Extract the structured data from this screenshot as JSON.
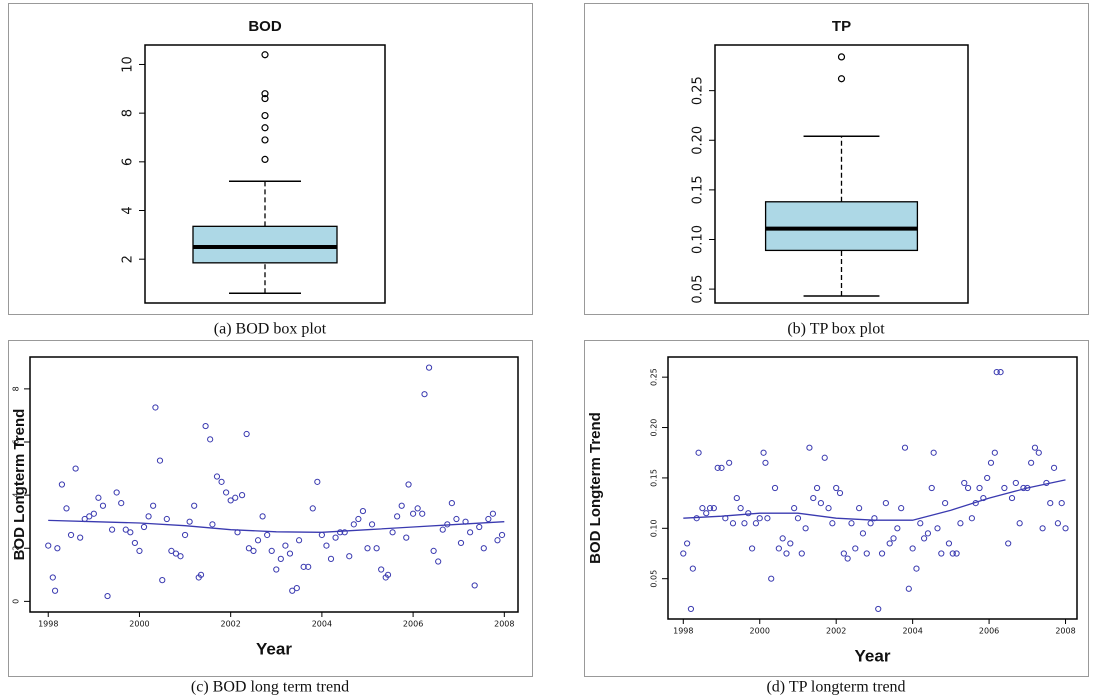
{
  "chart_data": [
    {
      "type": "box",
      "title": "BOD",
      "caption": "(a) BOD box plot",
      "color": "#add8e6",
      "stats": {
        "whisker_low": 0.6,
        "q1": 1.85,
        "median": 2.5,
        "q3": 3.35,
        "whisker_high": 5.2
      },
      "outliers": [
        6.1,
        6.9,
        7.4,
        7.9,
        8.6,
        8.8,
        10.4
      ],
      "ylim": [
        0.2,
        10.8
      ],
      "yticks": [
        2,
        4,
        6,
        8,
        10
      ]
    },
    {
      "type": "box",
      "title": "TP",
      "caption": "(b) TP box plot",
      "color": "#add8e6",
      "stats": {
        "whisker_low": 0.043,
        "q1": 0.089,
        "median": 0.111,
        "q3": 0.138,
        "whisker_high": 0.204
      },
      "outliers": [
        0.262,
        0.284
      ],
      "ylim": [
        0.036,
        0.296
      ],
      "yticks": [
        0.05,
        {
          "value": 0.1,
          "label": "0.10"
        },
        0.15,
        {
          "value": 0.2,
          "label": "0.20"
        },
        0.25
      ]
    },
    {
      "type": "scatter",
      "caption": "(c) BOD long term trend",
      "x_label": "Year",
      "y_label": "BOD Longterm Trend",
      "color": "#3a3ab0",
      "x": [
        1998.0,
        1998.1,
        1998.15,
        1998.2,
        1998.3,
        1998.4,
        1998.5,
        1998.6,
        1998.7,
        1998.8,
        1998.9,
        1999.0,
        1999.1,
        1999.2,
        1999.3,
        1999.4,
        1999.5,
        1999.6,
        1999.7,
        1999.8,
        1999.9,
        2000.0,
        2000.1,
        2000.2,
        2000.3,
        2000.35,
        2000.45,
        2000.5,
        2000.6,
        2000.7,
        2000.8,
        2000.9,
        2001.0,
        2001.1,
        2001.2,
        2001.3,
        2001.35,
        2001.45,
        2001.55,
        2001.6,
        2001.7,
        2001.8,
        2001.9,
        2002.0,
        2002.1,
        2002.15,
        2002.25,
        2002.35,
        2002.4,
        2002.5,
        2002.6,
        2002.7,
        2002.8,
        2002.9,
        2003.0,
        2003.1,
        2003.2,
        2003.3,
        2003.35,
        2003.45,
        2003.5,
        2003.6,
        2003.7,
        2003.8,
        2003.9,
        2004.0,
        2004.1,
        2004.2,
        2004.3,
        2004.4,
        2004.5,
        2004.6,
        2004.7,
        2004.8,
        2004.9,
        2005.0,
        2005.1,
        2005.2,
        2005.3,
        2005.4,
        2005.45,
        2005.55,
        2005.65,
        2005.75,
        2005.85,
        2005.9,
        2006.0,
        2006.1,
        2006.2,
        2006.25,
        2006.35,
        2006.45,
        2006.55,
        2006.65,
        2006.75,
        2006.85,
        2006.95,
        2007.05,
        2007.15,
        2007.25,
        2007.35,
        2007.45,
        2007.55,
        2007.65,
        2007.75,
        2007.85,
        2007.95
      ],
      "values": [
        2.1,
        0.9,
        0.4,
        2.0,
        4.4,
        3.5,
        2.5,
        5.0,
        2.4,
        3.1,
        3.2,
        3.3,
        3.9,
        3.6,
        0.2,
        2.7,
        4.1,
        3.7,
        2.7,
        2.6,
        2.2,
        1.9,
        2.8,
        3.2,
        3.6,
        7.3,
        5.3,
        0.8,
        3.1,
        1.9,
        1.8,
        1.7,
        2.5,
        3.0,
        3.6,
        0.9,
        1.0,
        6.6,
        6.1,
        2.9,
        4.7,
        4.5,
        4.1,
        3.8,
        3.9,
        2.6,
        4.0,
        6.3,
        2.0,
        1.9,
        2.3,
        3.2,
        2.5,
        1.9,
        1.2,
        1.6,
        2.1,
        1.8,
        0.4,
        0.5,
        2.3,
        1.3,
        1.3,
        3.5,
        4.5,
        2.5,
        2.1,
        1.6,
        2.4,
        2.6,
        2.6,
        1.7,
        2.9,
        3.1,
        3.4,
        2.0,
        2.9,
        2.0,
        1.2,
        0.9,
        1.0,
        2.6,
        3.2,
        3.6,
        2.4,
        4.4,
        3.3,
        3.5,
        3.3,
        7.8,
        8.8,
        1.9,
        1.5,
        2.7,
        2.9,
        3.7,
        3.1,
        2.2,
        3.0,
        2.6,
        0.6,
        2.8,
        2.0,
        3.1,
        3.3,
        2.3,
        2.5
      ],
      "trend": {
        "x": [
          1998,
          1999,
          2000,
          2001,
          2002,
          2003,
          2004,
          2005,
          2006,
          2007,
          2008
        ],
        "values": [
          3.05,
          3.0,
          2.95,
          2.85,
          2.7,
          2.62,
          2.6,
          2.7,
          2.8,
          2.9,
          3.0
        ]
      },
      "xlim": [
        1997.6,
        2008.3
      ],
      "xticks": [
        1998,
        2000,
        2002,
        2004,
        2006,
        2008
      ],
      "ylim": [
        -0.4,
        9.2
      ],
      "yticks": [
        0,
        2,
        4,
        6,
        8
      ]
    },
    {
      "type": "scatter",
      "caption": "(d) TP longterm trend",
      "x_label": "Year",
      "y_label": "BOD Longterm Trend",
      "color": "#3a3ab0",
      "x": [
        1998.0,
        1998.1,
        1998.2,
        1998.25,
        1998.35,
        1998.4,
        1998.5,
        1998.6,
        1998.7,
        1998.8,
        1998.9,
        1999.0,
        1999.1,
        1999.2,
        1999.3,
        1999.4,
        1999.5,
        1999.6,
        1999.7,
        1999.8,
        1999.9,
        2000.0,
        2000.1,
        2000.15,
        2000.2,
        2000.3,
        2000.4,
        2000.5,
        2000.6,
        2000.7,
        2000.8,
        2000.9,
        2001.0,
        2001.1,
        2001.2,
        2001.3,
        2001.4,
        2001.5,
        2001.6,
        2001.7,
        2001.8,
        2001.9,
        2002.0,
        2002.1,
        2002.2,
        2002.3,
        2002.4,
        2002.5,
        2002.6,
        2002.7,
        2002.8,
        2002.9,
        2003.0,
        2003.1,
        2003.2,
        2003.3,
        2003.4,
        2003.5,
        2003.6,
        2003.7,
        2003.8,
        2003.9,
        2004.0,
        2004.1,
        2004.2,
        2004.3,
        2004.4,
        2004.5,
        2004.55,
        2004.65,
        2004.75,
        2004.85,
        2004.95,
        2005.05,
        2005.15,
        2005.25,
        2005.35,
        2005.45,
        2005.55,
        2005.65,
        2005.75,
        2005.85,
        2005.95,
        2006.05,
        2006.15,
        2006.2,
        2006.3,
        2006.4,
        2006.5,
        2006.6,
        2006.7,
        2006.8,
        2006.9,
        2007.0,
        2007.1,
        2007.2,
        2007.3,
        2007.4,
        2007.5,
        2007.6,
        2007.7,
        2007.8,
        2007.9,
        2008.0
      ],
      "values": [
        0.075,
        0.085,
        0.02,
        0.06,
        0.11,
        0.175,
        0.12,
        0.115,
        0.12,
        0.12,
        0.16,
        0.16,
        0.11,
        0.165,
        0.105,
        0.13,
        0.12,
        0.105,
        0.115,
        0.08,
        0.105,
        0.11,
        0.175,
        0.165,
        0.11,
        0.05,
        0.14,
        0.08,
        0.09,
        0.075,
        0.085,
        0.12,
        0.11,
        0.075,
        0.1,
        0.18,
        0.13,
        0.14,
        0.125,
        0.17,
        0.12,
        0.105,
        0.14,
        0.135,
        0.075,
        0.07,
        0.105,
        0.08,
        0.12,
        0.095,
        0.075,
        0.105,
        0.11,
        0.02,
        0.075,
        0.125,
        0.085,
        0.09,
        0.1,
        0.12,
        0.18,
        0.04,
        0.08,
        0.06,
        0.105,
        0.09,
        0.095,
        0.14,
        0.175,
        0.1,
        0.075,
        0.125,
        0.085,
        0.075,
        0.075,
        0.105,
        0.145,
        0.14,
        0.11,
        0.125,
        0.14,
        0.13,
        0.15,
        0.165,
        0.175,
        0.255,
        0.255,
        0.14,
        0.085,
        0.13,
        0.145,
        0.105,
        0.14,
        0.14,
        0.165,
        0.18,
        0.175,
        0.1,
        0.145,
        0.125,
        0.16,
        0.105,
        0.125,
        0.1
      ],
      "trend": {
        "x": [
          1998,
          1999,
          2000,
          2001,
          2002,
          2003,
          2004,
          2005,
          2006,
          2007,
          2008
        ],
        "values": [
          0.11,
          0.112,
          0.115,
          0.115,
          0.11,
          0.108,
          0.108,
          0.118,
          0.13,
          0.14,
          0.148
        ]
      },
      "xlim": [
        1997.6,
        2008.3
      ],
      "xticks": [
        1998,
        2000,
        2002,
        2004,
        2006,
        2008
      ],
      "ylim": [
        0.01,
        0.27
      ],
      "yticks": [
        0.05,
        {
          "value": 0.1,
          "label": "0.10"
        },
        0.15,
        {
          "value": 0.2,
          "label": "0.20"
        },
        0.25
      ]
    }
  ]
}
